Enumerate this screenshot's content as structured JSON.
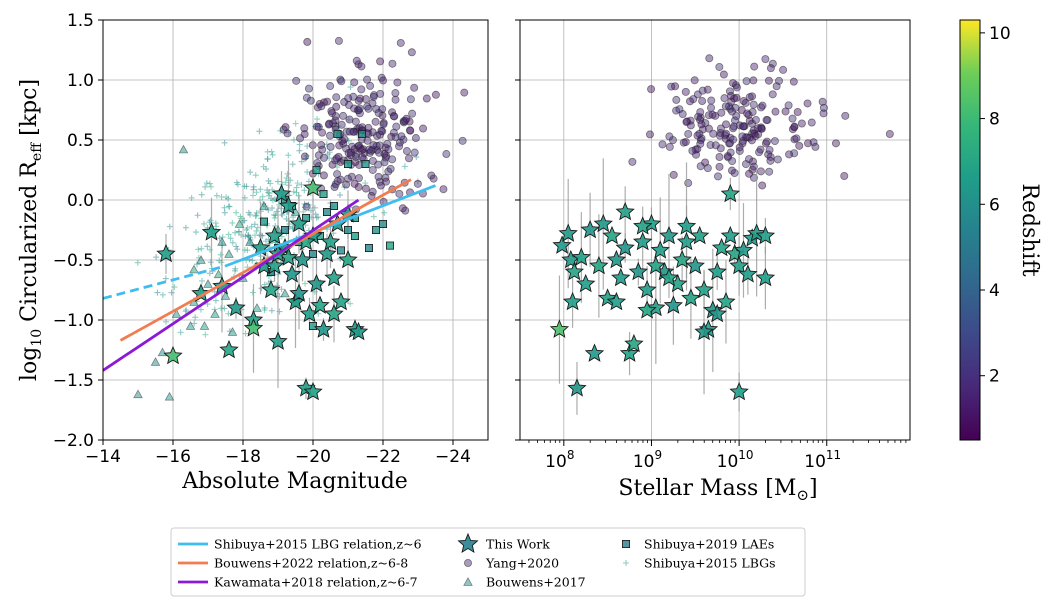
{
  "chart_data": [
    {
      "type": "scatter",
      "xlabel": "Absolute Magnitude",
      "ylabel_parts": {
        "prefix": "log",
        "sub": "10",
        "mid": " Circularized R",
        "sub2": "eff",
        "suffix": " [kpc]"
      },
      "xlim": [
        -14,
        -25
      ],
      "ylim": [
        -2.0,
        1.5
      ],
      "x_ticks": [
        -14,
        -16,
        -18,
        -20,
        -22,
        -24
      ],
      "x_tick_labels": [
        "−14",
        "−16",
        "−18",
        "−20",
        "−22",
        "−24"
      ],
      "y_ticks": [
        -2.0,
        -1.5,
        -1.0,
        -0.5,
        0.0,
        0.5,
        1.0,
        1.5
      ],
      "y_tick_labels": [
        "−2.0",
        "−1.5",
        "−1.0",
        "−0.5",
        "0.0",
        "0.5",
        "1.0",
        "1.5"
      ],
      "grid": true,
      "lines": [
        {
          "name": "Shibuya+2015 LBG relation,z~6",
          "color": "#3fbdf0",
          "solid": [
            [
              -17.5,
              -0.55
            ],
            [
              -23.5,
              0.12
            ]
          ],
          "dashed": [
            [
              -14,
              -0.82
            ],
            [
              -17.5,
              -0.55
            ]
          ]
        },
        {
          "name": "Bouwens+2022 relation,z~6-8",
          "color": "#f07d50",
          "solid": [
            [
              -14.5,
              -1.17
            ],
            [
              -22.8,
              0.17
            ]
          ]
        },
        {
          "name": "Kawamata+2018 relation,z~6-7",
          "color": "#8b1ad6",
          "solid": [
            [
              -14,
              -1.42
            ],
            [
              -21.3,
              0.0
            ]
          ]
        }
      ],
      "series": [
        {
          "name": "This Work",
          "marker": "star",
          "points": [
            [
              -15.8,
              -0.45
            ],
            [
              -16.0,
              -1.3
            ],
            [
              -16.8,
              -0.78
            ],
            [
              -17.1,
              -0.27
            ],
            [
              -17.4,
              -0.72
            ],
            [
              -17.6,
              -1.25
            ],
            [
              -17.8,
              -0.9
            ],
            [
              -18.3,
              -1.0
            ],
            [
              -18.3,
              -1.07
            ],
            [
              -18.8,
              -0.75
            ],
            [
              -19.0,
              -1.18
            ],
            [
              -18.6,
              -0.55
            ],
            [
              -19.2,
              -0.4
            ],
            [
              -19.4,
              -0.62
            ],
            [
              -19.5,
              -0.85
            ],
            [
              -19.6,
              -0.2
            ],
            [
              -19.7,
              -0.5
            ],
            [
              -19.8,
              -1.57
            ],
            [
              -19.9,
              -0.95
            ],
            [
              -20.0,
              -0.3
            ],
            [
              -20.0,
              -1.6
            ],
            [
              -20.0,
              0.1
            ],
            [
              -20.1,
              -0.7
            ],
            [
              -20.2,
              -0.88
            ],
            [
              -20.3,
              -1.08
            ],
            [
              -20.4,
              -0.45
            ],
            [
              -20.6,
              -0.65
            ],
            [
              -20.7,
              -0.2
            ],
            [
              -20.8,
              -0.85
            ],
            [
              -21.0,
              -0.5
            ],
            [
              -21.2,
              -1.08
            ],
            [
              -21.3,
              -1.1
            ],
            [
              -21.0,
              -0.12
            ],
            [
              -19.3,
              -0.05
            ],
            [
              -19.1,
              0.05
            ],
            [
              -18.9,
              -0.3
            ],
            [
              -19.6,
              -0.78
            ],
            [
              -20.6,
              -0.95
            ],
            [
              -18.9,
              -0.55
            ],
            [
              -19.3,
              -0.48
            ],
            [
              -19.8,
              -0.35
            ],
            [
              -20.5,
              -0.35
            ],
            [
              -19.0,
              -0.45
            ],
            [
              -18.5,
              -0.4
            ]
          ]
        },
        {
          "name": "Yang+2020",
          "marker": "circle"
        },
        {
          "name": "Bouwens+2017",
          "marker": "triangle",
          "points": [
            [
              -15.0,
              -1.62
            ],
            [
              -15.5,
              -1.35
            ],
            [
              -15.7,
              -1.27
            ],
            [
              -15.9,
              -1.64
            ],
            [
              -16.1,
              -0.95
            ],
            [
              -16.3,
              0.42
            ],
            [
              -16.5,
              -1.05
            ],
            [
              -16.6,
              -0.85
            ],
            [
              -16.8,
              -0.5
            ],
            [
              -16.9,
              -1.05
            ],
            [
              -17.0,
              -0.7
            ],
            [
              -17.2,
              -0.95
            ],
            [
              -17.3,
              -0.62
            ],
            [
              -17.5,
              -0.8
            ],
            [
              -17.6,
              -0.45
            ],
            [
              -17.7,
              -1.1
            ],
            [
              -17.9,
              -0.2
            ],
            [
              -18.0,
              -0.65
            ],
            [
              -18.2,
              -0.35
            ],
            [
              -18.4,
              -0.9
            ],
            [
              -18.6,
              -0.05
            ],
            [
              -18.8,
              -0.6
            ],
            [
              -19.0,
              -0.25
            ],
            [
              -19.2,
              -0.78
            ],
            [
              -19.5,
              -0.1
            ],
            [
              -17.4,
              -0.35
            ],
            [
              -16.6,
              -0.58
            ]
          ]
        },
        {
          "name": "Shibuya+2019 LAEs",
          "marker": "square",
          "points": [
            [
              -18.8,
              -0.6
            ],
            [
              -19.0,
              -0.4
            ],
            [
              -19.2,
              -0.25
            ],
            [
              -19.4,
              -0.05
            ],
            [
              -19.6,
              -0.35
            ],
            [
              -19.8,
              -0.15
            ],
            [
              -20.0,
              -0.45
            ],
            [
              -20.2,
              -0.3
            ],
            [
              -20.4,
              -0.1
            ],
            [
              -20.6,
              -0.05
            ],
            [
              -20.8,
              -0.42
            ],
            [
              -21.0,
              0.3
            ],
            [
              -21.2,
              -0.15
            ],
            [
              -21.4,
              0.55
            ],
            [
              -21.6,
              -0.4
            ],
            [
              -21.8,
              -0.25
            ],
            [
              -22.0,
              -0.2
            ],
            [
              -22.2,
              -0.38
            ],
            [
              -20.3,
              0.05
            ],
            [
              -21.0,
              -0.25
            ],
            [
              -20.0,
              -1.05
            ],
            [
              -19.5,
              -0.85
            ],
            [
              -21.5,
              0.3
            ],
            [
              -19.2,
              0.0
            ],
            [
              -20.7,
              0.55
            ],
            [
              -21.2,
              -0.3
            ],
            [
              -18.6,
              -0.18
            ],
            [
              -20.1,
              0.25
            ]
          ]
        },
        {
          "name": "Shibuya+2015 LBGs",
          "marker": "plus"
        }
      ]
    },
    {
      "type": "scatter",
      "xlabel_parts": {
        "prefix": "Stellar Mass [M",
        "sub": "⊙",
        "suffix": "]"
      },
      "xscale": "log",
      "xlim": [
        7.5,
        11.95
      ],
      "ylim": [
        -2.0,
        1.5
      ],
      "x_ticks": [
        8,
        9,
        10,
        11
      ],
      "x_tick_base": "10",
      "grid": true,
      "series": [
        {
          "name": "This Work",
          "marker": "star",
          "points": [
            [
              7.95,
              -1.08
            ],
            [
              7.98,
              -0.38
            ],
            [
              8.05,
              -0.28
            ],
            [
              8.08,
              -0.5
            ],
            [
              8.1,
              -0.85
            ],
            [
              8.12,
              -0.6
            ],
            [
              8.15,
              -1.57
            ],
            [
              8.2,
              -0.48
            ],
            [
              8.25,
              -0.7
            ],
            [
              8.3,
              -0.25
            ],
            [
              8.35,
              -1.28
            ],
            [
              8.4,
              -0.55
            ],
            [
              8.45,
              -0.2
            ],
            [
              8.5,
              -0.82
            ],
            [
              8.55,
              -0.3
            ],
            [
              8.6,
              -0.5
            ],
            [
              8.65,
              -0.65
            ],
            [
              8.7,
              -0.1
            ],
            [
              8.75,
              -1.28
            ],
            [
              8.8,
              -1.2
            ],
            [
              8.85,
              -0.6
            ],
            [
              8.9,
              -0.35
            ],
            [
              8.95,
              -0.75
            ],
            [
              9.0,
              -0.2
            ],
            [
              9.05,
              -0.9
            ],
            [
              9.1,
              -0.42
            ],
            [
              9.15,
              -0.6
            ],
            [
              9.2,
              -0.3
            ],
            [
              9.25,
              -0.88
            ],
            [
              9.3,
              -0.7
            ],
            [
              9.35,
              -0.5
            ],
            [
              9.4,
              -0.35
            ],
            [
              9.45,
              -0.82
            ],
            [
              9.5,
              -0.55
            ],
            [
              9.55,
              -0.3
            ],
            [
              9.6,
              -0.75
            ],
            [
              9.65,
              -1.08
            ],
            [
              9.7,
              -0.92
            ],
            [
              9.75,
              -0.6
            ],
            [
              9.8,
              -0.4
            ],
            [
              9.85,
              -0.85
            ],
            [
              9.9,
              -0.3
            ],
            [
              9.95,
              -0.45
            ],
            [
              10.0,
              -0.55
            ],
            [
              10.05,
              -0.42
            ],
            [
              10.1,
              -0.62
            ],
            [
              10.15,
              -0.32
            ],
            [
              10.2,
              -0.28
            ],
            [
              9.6,
              -1.1
            ],
            [
              9.4,
              -0.22
            ],
            [
              9.2,
              -0.65
            ],
            [
              8.95,
              -0.92
            ],
            [
              9.9,
              0.05
            ],
            [
              9.75,
              -0.95
            ],
            [
              8.7,
              -0.4
            ],
            [
              8.9,
              -0.22
            ],
            [
              9.05,
              -0.55
            ],
            [
              8.6,
              -0.85
            ],
            [
              10.0,
              -1.6
            ],
            [
              10.3,
              -0.3
            ],
            [
              10.3,
              -0.65
            ]
          ]
        },
        {
          "name": "Yang+2020",
          "marker": "circle"
        }
      ]
    }
  ],
  "colorbar": {
    "label": "Redshift",
    "range": [
      0.5,
      10.3
    ],
    "ticks": [
      2,
      4,
      6,
      8,
      10
    ],
    "tick_labels": [
      "2",
      "4",
      "6",
      "8",
      "10"
    ]
  },
  "legend": {
    "placement": "bottom",
    "items": [
      {
        "label": "Shibuya+2015 LBG relation,z~6",
        "kind": "line",
        "color": "#3fbdf0"
      },
      {
        "label": "Bouwens+2022 relation,z~6-8",
        "kind": "line",
        "color": "#f07d50"
      },
      {
        "label": "Kawamata+2018 relation,z~6-7",
        "kind": "line",
        "color": "#8b1ad6"
      },
      {
        "label": "This Work",
        "kind": "star"
      },
      {
        "label": "Yang+2020",
        "kind": "circle"
      },
      {
        "label": "Bouwens+2017",
        "kind": "triangle"
      },
      {
        "label": "Shibuya+2019 LAEs",
        "kind": "square"
      },
      {
        "label": "Shibuya+2015 LBGs",
        "kind": "plus"
      }
    ]
  }
}
